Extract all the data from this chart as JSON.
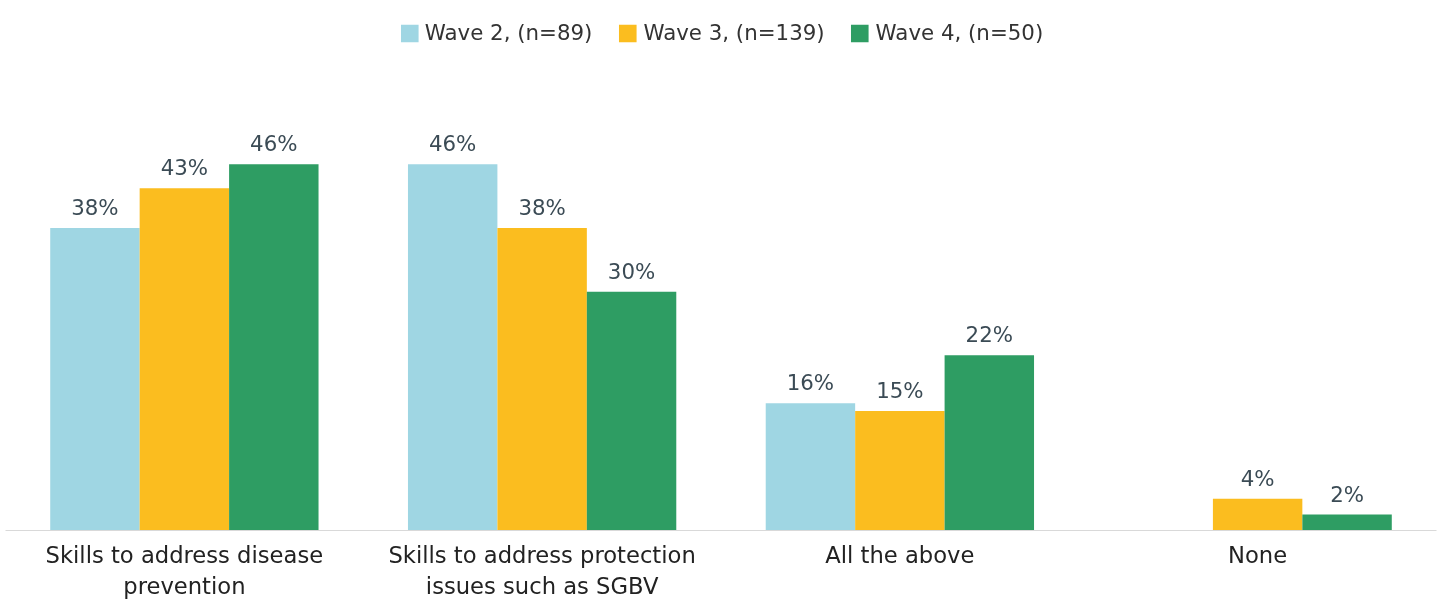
{
  "chart_data": {
    "type": "bar",
    "categories": [
      "Skills to address disease prevention",
      "Skills to address protection issues such as SGBV",
      "All the above",
      "None"
    ],
    "series": [
      {
        "name": "Wave 2, (n=89)",
        "color": "#9fd6e3",
        "values": [
          38,
          46,
          16,
          null
        ],
        "value_labels": [
          "38%",
          "46%",
          "16%",
          null
        ]
      },
      {
        "name": "Wave 3, (n=139)",
        "color": "#fbbd1f",
        "values": [
          43,
          38,
          15,
          4
        ],
        "value_labels": [
          "43%",
          "38%",
          "15%",
          "4%"
        ]
      },
      {
        "name": "Wave 4, (n=50)",
        "color": "#2e9d63",
        "values": [
          46,
          30,
          22,
          2
        ],
        "value_labels": [
          "46%",
          "30%",
          "22%",
          "2%"
        ]
      }
    ],
    "legend": "top",
    "grid": false
  }
}
